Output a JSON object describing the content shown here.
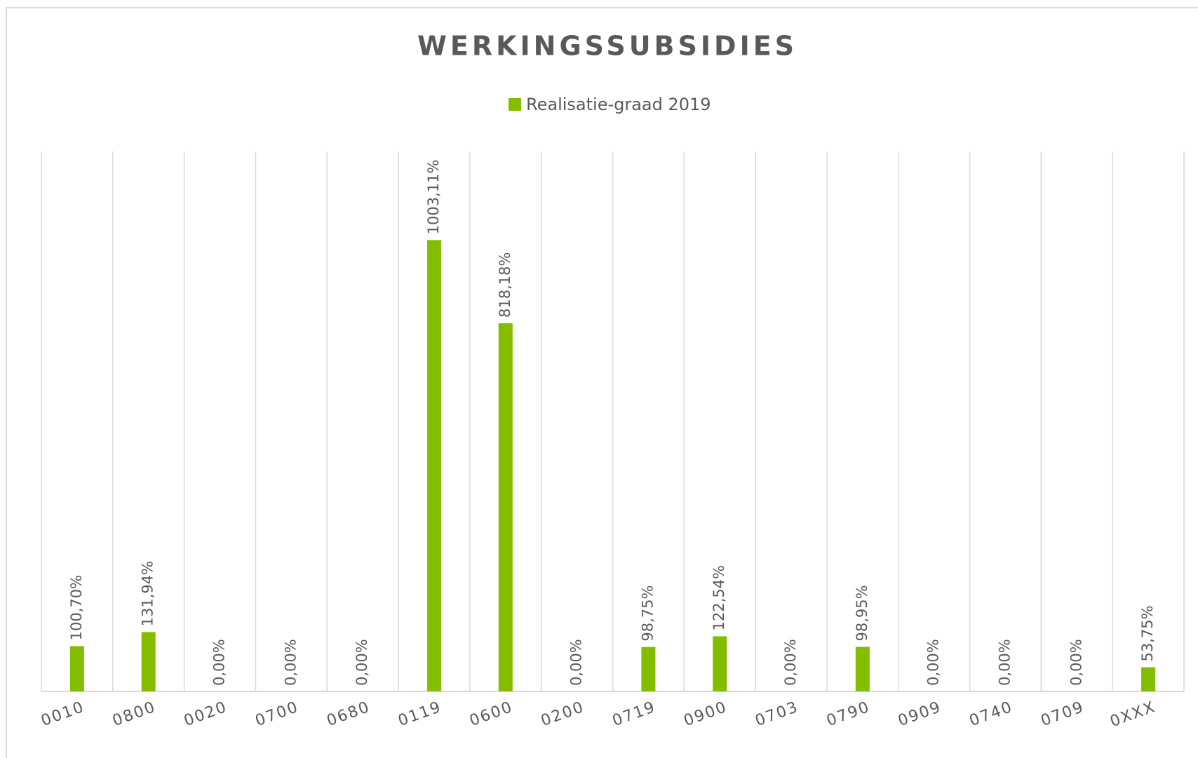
{
  "chart_data": {
    "type": "bar",
    "title": "WERKINGSSUBSIDIES",
    "categories": [
      "0010",
      "0800",
      "0020",
      "0700",
      "0680",
      "0119",
      "0600",
      "0200",
      "0719",
      "0900",
      "0703",
      "0790",
      "0909",
      "0740",
      "0709",
      "0XXX"
    ],
    "series": [
      {
        "name": "Realisatie-graad 2019",
        "color": "#84bd00",
        "values": [
          100.7,
          131.94,
          0,
          0,
          0,
          1003.11,
          818.18,
          0,
          98.75,
          122.54,
          0,
          98.95,
          0,
          0,
          0,
          53.75
        ],
        "value_labels": [
          "100,70%",
          "131,94%",
          "0,00%",
          "0,00%",
          "0,00%",
          "1003,11%",
          "818,18%",
          "0,00%",
          "98,75%",
          "122,54%",
          "0,00%",
          "98,95%",
          "0,00%",
          "0,00%",
          "0,00%",
          "53,75%"
        ]
      }
    ],
    "ylim": [
      0,
      1200
    ],
    "legend": "top"
  }
}
